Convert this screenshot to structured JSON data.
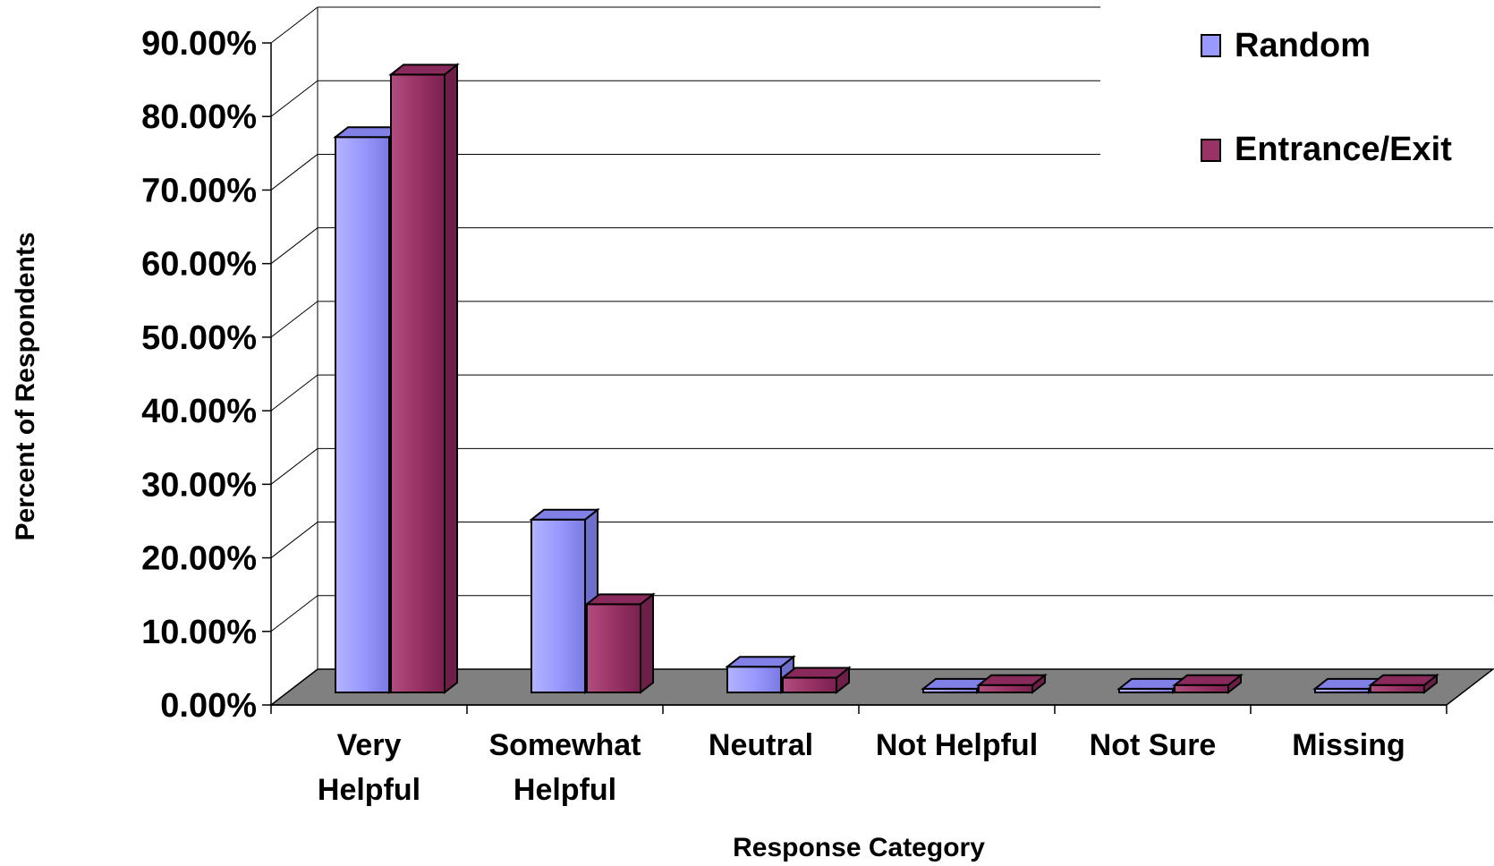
{
  "chart_data": {
    "type": "bar",
    "title": "",
    "xlabel": "Response Category",
    "ylabel": "Percent of Respondents",
    "categories": [
      [
        "Very",
        "Helpful"
      ],
      [
        "Somewhat",
        "Helpful"
      ],
      [
        "Neutral"
      ],
      [
        "Not Helpful"
      ],
      [
        "Not Sure"
      ],
      [
        "Missing"
      ]
    ],
    "series": [
      {
        "name": "Random",
        "color": "#9999ff",
        "values": [
          75.5,
          23.5,
          3.5,
          0.5,
          0.5,
          0.5
        ]
      },
      {
        "name": "Entrance/Exit",
        "color": "#993366",
        "values": [
          84.0,
          12.0,
          2.0,
          1.0,
          1.0,
          1.0
        ]
      }
    ],
    "ylim": [
      0,
      90
    ],
    "yticks": [
      "0.00%",
      "10.00%",
      "20.00%",
      "30.00%",
      "40.00%",
      "50.00%",
      "60.00%",
      "70.00%",
      "80.00%",
      "90.00%"
    ],
    "grid": true,
    "legend_position": "top-right",
    "floor_color": "#808080"
  }
}
